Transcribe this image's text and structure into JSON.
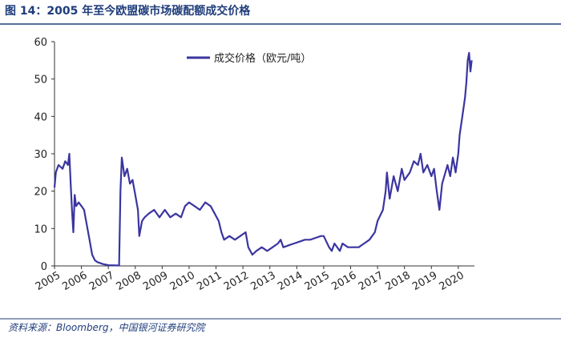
{
  "chart_data": {
    "type": "line",
    "title": "图 14：2005 年至今欧盟碳市场碳配额成交价格",
    "source": "资料来源：Bloomberg，中国银河证券研究院",
    "x": [
      2005.0,
      2005.05,
      2005.15,
      2005.3,
      2005.4,
      2005.5,
      2005.55,
      2005.6,
      2005.65,
      2005.7,
      2005.75,
      2005.8,
      2005.9,
      2006.0,
      2006.1,
      2006.2,
      2006.3,
      2006.4,
      2006.5,
      2006.6,
      2006.8,
      2007.0,
      2007.4,
      2007.45,
      2007.5,
      2007.6,
      2007.7,
      2007.8,
      2007.9,
      2008.0,
      2008.1,
      2008.15,
      2008.25,
      2008.35,
      2008.5,
      2008.7,
      2008.9,
      2009.1,
      2009.3,
      2009.5,
      2009.7,
      2009.85,
      2010.0,
      2010.2,
      2010.4,
      2010.6,
      2010.8,
      2010.95,
      2011.1,
      2011.2,
      2011.3,
      2011.5,
      2011.7,
      2011.9,
      2012.1,
      2012.2,
      2012.35,
      2012.5,
      2012.7,
      2012.9,
      2013.1,
      2013.3,
      2013.4,
      2013.5,
      2013.7,
      2013.9,
      2014.1,
      2014.3,
      2014.5,
      2014.7,
      2014.9,
      2015.0,
      2015.2,
      2015.3,
      2015.4,
      2015.6,
      2015.7,
      2015.9,
      2016.1,
      2016.3,
      2016.5,
      2016.7,
      2016.9,
      2017.0,
      2017.2,
      2017.3,
      2017.35,
      2017.45,
      2017.6,
      2017.75,
      2017.9,
      2018.0,
      2018.2,
      2018.35,
      2018.5,
      2018.6,
      2018.7,
      2018.85,
      2019.0,
      2019.1,
      2019.2,
      2019.3,
      2019.4,
      2019.6,
      2019.7,
      2019.8,
      2019.9,
      2020.0,
      2020.05,
      2020.15,
      2020.25,
      2020.3,
      2020.35,
      2020.4,
      2020.45,
      2020.5
    ],
    "series": [
      {
        "name": "成交价格（欧元/吨）",
        "color": "#3b35a0",
        "values": [
          21,
          25,
          27,
          26,
          28,
          27,
          30,
          22,
          15,
          9,
          19,
          16,
          17,
          16,
          15,
          11,
          7,
          3,
          1.5,
          1,
          0.5,
          0.2,
          0.1,
          20,
          29,
          24,
          26,
          22,
          23,
          19,
          15,
          8,
          12,
          13,
          14,
          15,
          13,
          15,
          13,
          14,
          13,
          16,
          17,
          16,
          15,
          17,
          16,
          14,
          12,
          9,
          7,
          8,
          7,
          8,
          9,
          5,
          3,
          4,
          5,
          4,
          5,
          6,
          7,
          5,
          5.5,
          6,
          6.5,
          7,
          7,
          7.5,
          8,
          8,
          5,
          4,
          6,
          4,
          6,
          5,
          5,
          5,
          6,
          7,
          9,
          12,
          15,
          20,
          25,
          18,
          24,
          20,
          26,
          23,
          25,
          28,
          27,
          30,
          25,
          27,
          24,
          26,
          20,
          15,
          22,
          27,
          24,
          29,
          25,
          30,
          35,
          40,
          45,
          49,
          55,
          57,
          52,
          55
        ]
      }
    ],
    "xlim": [
      2005,
      2020.6
    ],
    "ylim": [
      0,
      60
    ],
    "xticks": [
      2005,
      2006,
      2007,
      2008,
      2009,
      2010,
      2011,
      2012,
      2013,
      2014,
      2015,
      2016,
      2017,
      2018,
      2019,
      2020
    ],
    "yticks": [
      0,
      10,
      20,
      30,
      40,
      50,
      60
    ]
  }
}
